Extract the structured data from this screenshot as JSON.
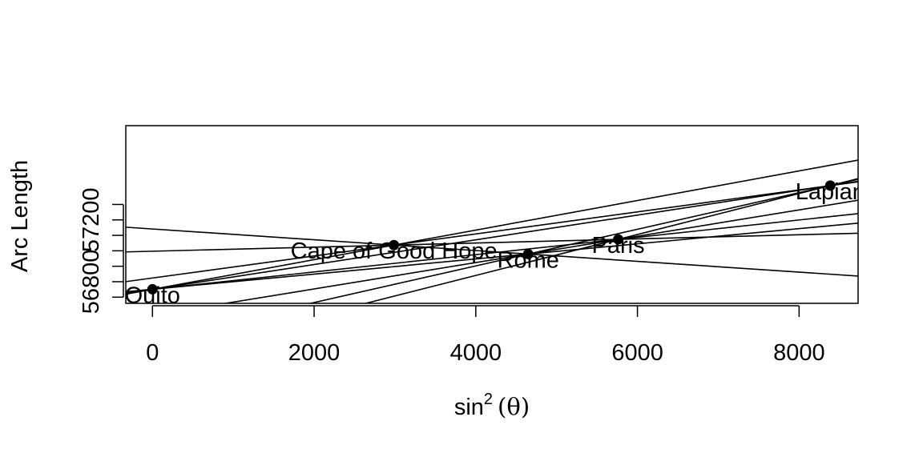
{
  "chart_data": {
    "type": "scatter",
    "title": "",
    "xlabel": "sin",
    "xlabel_superscript": "2",
    "xlabel_arg": "(θ)",
    "ylabel": "Arc Length",
    "xlim": [
      -330,
      8730
    ],
    "ylim": [
      56660,
      57810
    ],
    "x_ticks": [
      0,
      2000,
      4000,
      6000,
      8000
    ],
    "x_tick_labels": [
      "0",
      "2000",
      "4000",
      "6000",
      "8000"
    ],
    "y_ticks": [
      56700,
      56800,
      56900,
      57000,
      57100,
      57200,
      57300
    ],
    "y_tick_labels": [
      "56800",
      "57200"
    ],
    "y_tick_label_values": [
      56800,
      57200
    ],
    "points": [
      {
        "name": "Quito",
        "x": 0,
        "y": 56751
      },
      {
        "name": "Cape of Good Hope",
        "x": 2987,
        "y": 57037
      },
      {
        "name": "Rome",
        "x": 4648,
        "y": 56979
      },
      {
        "name": "Paris",
        "x": 5762,
        "y": 57074
      },
      {
        "name": "Lapland",
        "x": 8386,
        "y": 57422
      }
    ],
    "label_texts": [
      "Quito",
      "Cape of Good Hope",
      "Rome",
      "Paris",
      "Lapian"
    ],
    "lines_through_pairs": [
      [
        0,
        1
      ],
      [
        0,
        2
      ],
      [
        0,
        3
      ],
      [
        0,
        4
      ],
      [
        1,
        2
      ],
      [
        1,
        3
      ],
      [
        1,
        4
      ],
      [
        2,
        3
      ],
      [
        2,
        4
      ],
      [
        3,
        4
      ]
    ]
  }
}
